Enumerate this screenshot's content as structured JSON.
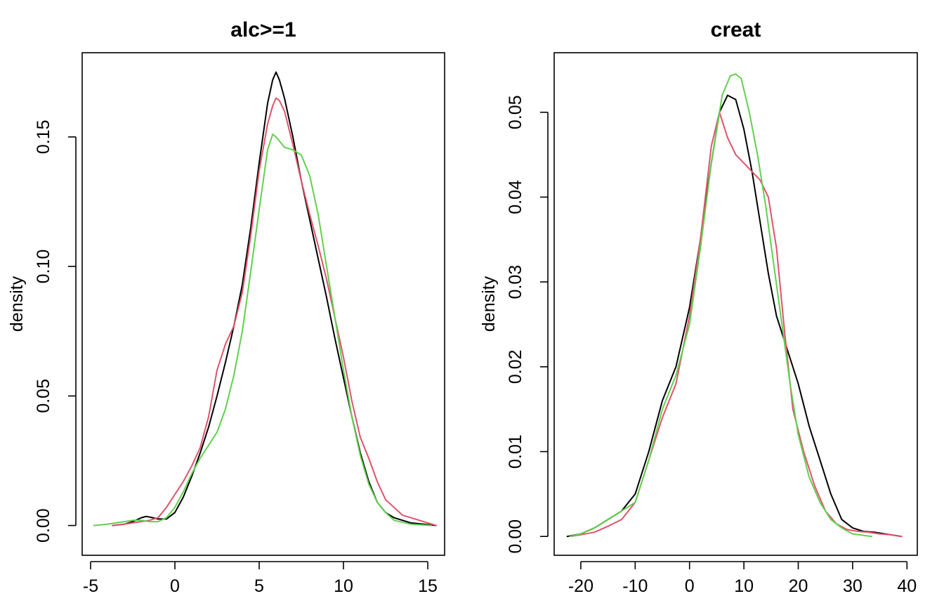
{
  "chart_data": [
    {
      "type": "line",
      "title": "alc>=1",
      "xlabel": "",
      "ylabel": "density",
      "xlim": [
        -5.5,
        16.0
      ],
      "ylim": [
        -0.0115,
        0.1825
      ],
      "xticks": [
        -5,
        0,
        5,
        10,
        15
      ],
      "xtick_labels": [
        "-5",
        "0",
        "5",
        "10",
        "15"
      ],
      "yticks": [
        0.0,
        0.05,
        0.1,
        0.15
      ],
      "ytick_labels": [
        "0.00",
        "0.05",
        "0.10",
        "0.15"
      ],
      "series": [
        {
          "name": "black",
          "color": "#000000",
          "x": [
            -3.7,
            -3,
            -2.5,
            -2,
            -1.7,
            -1.3,
            -1,
            -0.5,
            0,
            0.5,
            1,
            1.5,
            2,
            2.5,
            3,
            3.5,
            4,
            4.5,
            5,
            5.5,
            5.8,
            6,
            6.2,
            6.5,
            7,
            7.5,
            8,
            8.5,
            9,
            9.5,
            10,
            10.5,
            11,
            11.5,
            12,
            12.5,
            13,
            14,
            15.5
          ],
          "y": [
            0.0,
            0.0005,
            0.0015,
            0.003,
            0.0035,
            0.003,
            0.0025,
            0.0025,
            0.005,
            0.011,
            0.019,
            0.028,
            0.038,
            0.05,
            0.063,
            0.077,
            0.093,
            0.115,
            0.14,
            0.163,
            0.172,
            0.175,
            0.172,
            0.165,
            0.15,
            0.133,
            0.118,
            0.103,
            0.088,
            0.072,
            0.057,
            0.042,
            0.028,
            0.017,
            0.009,
            0.005,
            0.003,
            0.001,
            0.0
          ]
        },
        {
          "name": "red",
          "color": "#DF536B",
          "x": [
            -3.7,
            -3,
            -2.5,
            -2,
            -1.5,
            -1,
            -0.5,
            0,
            0.5,
            1,
            1.5,
            2,
            2.5,
            3,
            3.5,
            4,
            4.5,
            5,
            5.5,
            5.8,
            6,
            6.2,
            6.5,
            7,
            7.5,
            8,
            8.5,
            9,
            9.5,
            10,
            10.5,
            11,
            11.5,
            12,
            12.5,
            13,
            13.5,
            14,
            15.5
          ],
          "y": [
            0.0,
            0.0005,
            0.001,
            0.0015,
            0.002,
            0.003,
            0.007,
            0.012,
            0.017,
            0.023,
            0.03,
            0.042,
            0.06,
            0.07,
            0.077,
            0.09,
            0.112,
            0.137,
            0.155,
            0.162,
            0.165,
            0.164,
            0.16,
            0.147,
            0.133,
            0.12,
            0.108,
            0.095,
            0.08,
            0.065,
            0.048,
            0.034,
            0.026,
            0.017,
            0.01,
            0.007,
            0.004,
            0.003,
            0.0
          ]
        },
        {
          "name": "green",
          "color": "#61D04F",
          "x": [
            -4.8,
            -4,
            -3.5,
            -3,
            -2.5,
            -2,
            -1.5,
            -1,
            -0.5,
            0,
            0.5,
            1,
            1.5,
            2,
            2.5,
            3,
            3.5,
            4,
            4.5,
            5,
            5.5,
            5.8,
            6,
            6.5,
            7,
            7.5,
            8,
            8.5,
            9,
            9.5,
            10,
            10.5,
            11,
            11.5,
            12,
            12.5,
            13,
            14,
            15.2
          ],
          "y": [
            0.0,
            0.0005,
            0.001,
            0.0015,
            0.002,
            0.002,
            0.0015,
            0.0015,
            0.003,
            0.007,
            0.013,
            0.02,
            0.026,
            0.031,
            0.036,
            0.045,
            0.058,
            0.075,
            0.098,
            0.122,
            0.145,
            0.151,
            0.15,
            0.146,
            0.145,
            0.143,
            0.135,
            0.12,
            0.1,
            0.08,
            0.06,
            0.042,
            0.027,
            0.016,
            0.009,
            0.005,
            0.002,
            0.0005,
            0.0
          ]
        }
      ]
    },
    {
      "type": "line",
      "title": "creat",
      "xlabel": "",
      "ylabel": "density",
      "xlim": [
        -24.9,
        41.9
      ],
      "ylim": [
        -0.00222,
        0.05702
      ],
      "xticks": [
        -20,
        -10,
        0,
        10,
        20,
        30,
        40
      ],
      "xtick_labels": [
        "-20",
        "-10",
        "0",
        "10",
        "20",
        "30",
        "40"
      ],
      "yticks": [
        0.0,
        0.01,
        0.02,
        0.03,
        0.04,
        0.05
      ],
      "ytick_labels": [
        "0.00",
        "0.01",
        "0.02",
        "0.03",
        "0.04",
        "0.05"
      ],
      "series": [
        {
          "name": "black",
          "color": "#000000",
          "x": [
            -22.5,
            -20,
            -17.5,
            -15,
            -12.5,
            -10,
            -7.5,
            -5,
            -2.5,
            0,
            2,
            4,
            5.5,
            7,
            8.5,
            10,
            11.5,
            13,
            14.5,
            16,
            18,
            20,
            22,
            24,
            26,
            28,
            30,
            32,
            34,
            36,
            38,
            39
          ],
          "y": [
            0.0,
            0.0003,
            0.001,
            0.002,
            0.003,
            0.005,
            0.01,
            0.016,
            0.02,
            0.027,
            0.035,
            0.044,
            0.05,
            0.052,
            0.0515,
            0.048,
            0.043,
            0.037,
            0.031,
            0.026,
            0.022,
            0.018,
            0.013,
            0.009,
            0.005,
            0.002,
            0.001,
            0.0006,
            0.0005,
            0.0003,
            0.0001,
            0.0
          ]
        },
        {
          "name": "red",
          "color": "#DF536B",
          "x": [
            -22,
            -20,
            -17.5,
            -15,
            -12.5,
            -10,
            -7.5,
            -5,
            -2.5,
            0,
            2,
            4,
            5.5,
            7,
            8.5,
            10,
            11.5,
            13,
            14.5,
            16,
            17.5,
            19,
            21,
            23,
            25,
            27,
            29,
            31,
            33,
            35,
            37,
            39
          ],
          "y": [
            0.0,
            0.0002,
            0.0005,
            0.0012,
            0.002,
            0.004,
            0.009,
            0.014,
            0.018,
            0.026,
            0.035,
            0.046,
            0.05,
            0.047,
            0.045,
            0.044,
            0.043,
            0.042,
            0.04,
            0.034,
            0.024,
            0.015,
            0.01,
            0.006,
            0.003,
            0.0015,
            0.0008,
            0.0006,
            0.0005,
            0.0003,
            0.0002,
            0.0
          ]
        },
        {
          "name": "green",
          "color": "#61D04F",
          "x": [
            -22,
            -20,
            -17.5,
            -15,
            -12.5,
            -10,
            -7.5,
            -5,
            -2.5,
            0,
            2,
            4,
            6,
            7.5,
            8.5,
            9.5,
            11,
            12.5,
            14,
            15.5,
            17,
            18.5,
            20,
            22,
            24,
            26,
            28,
            30,
            33.5
          ],
          "y": [
            0.0,
            0.0003,
            0.001,
            0.002,
            0.003,
            0.004,
            0.009,
            0.015,
            0.019,
            0.025,
            0.034,
            0.044,
            0.052,
            0.0543,
            0.0545,
            0.054,
            0.05,
            0.045,
            0.039,
            0.032,
            0.025,
            0.018,
            0.012,
            0.007,
            0.004,
            0.002,
            0.001,
            0.0003,
            0.0
          ]
        }
      ]
    }
  ]
}
